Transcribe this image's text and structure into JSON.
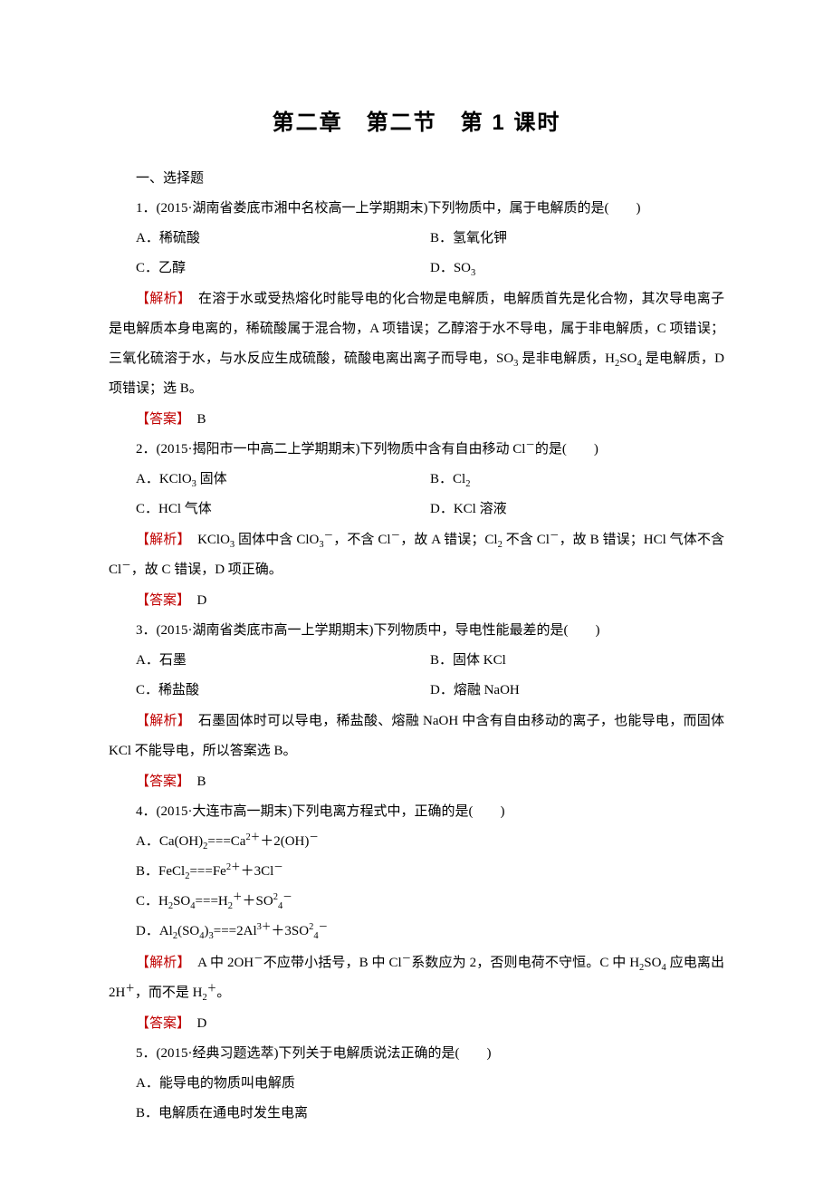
{
  "colors": {
    "text": "#000000",
    "highlight": "#c00000",
    "background": "#ffffff"
  },
  "title": "第二章　第二节　第 1 课时",
  "section_heading": "一、选择题",
  "q1": {
    "stem": "1．(2015·湖南省娄底市湘中名校高一上学期期末)下列物质中，属于电解质的是(　　)",
    "opt_a": "A．稀硫酸",
    "opt_b": "B．氢氧化钾",
    "opt_c": "C．乙醇",
    "exp_label": "【解析】",
    "exp_text_before_d": "　在溶于水或受热熔化时能导电的化合物是电解质，电解质首先是化合物，其次导电离子是电解质本身电离的，稀硫酸属于混合物，A 项错误；乙醇溶于水不导电，属于非电解质，C 项错误；三氧化硫溶于水，与水反应生成硫酸，硫酸电离出离子而导电，SO",
    "exp_text_after_d": " 是非电解质，H",
    "exp_text_tail": " 是电解质，D 项错误；选 B。",
    "ans_label": "【答案】",
    "ans_val": "　B"
  },
  "q2": {
    "stem_before": "2．(2015·揭阳市一中高二上学期期末)下列物质中含有自由移动 Cl",
    "stem_after": "的是(　　)",
    "opt_b": "B．Cl",
    "opt_c": "C．HCl 气体",
    "opt_d": "D．KCl 溶液",
    "exp_label": "【解析】",
    "ans_label": "【答案】",
    "ans_val": "　D"
  },
  "q3": {
    "stem": "3．(2015·湖南省类底市高一上学期期末)下列物质中，导电性能最差的是(　　)",
    "opt_a": "A．石墨",
    "opt_b": "B．固体 KCl",
    "opt_c": "C．稀盐酸",
    "opt_d": "D．熔融 NaOH",
    "exp_label": "【解析】",
    "exp_text": "　石墨固体时可以导电，稀盐酸、熔融 NaOH 中含有自由移动的离子，也能导电，而固体 KCl 不能导电，所以答案选 B。",
    "ans_label": "【答案】",
    "ans_val": "　B"
  },
  "q4": {
    "stem": "4．(2015·大连市高一期末)下列电离方程式中，正确的是(　　)",
    "exp_label": "【解析】",
    "ans_label": "【答案】",
    "ans_val": "　D"
  },
  "q5": {
    "stem": "5．(2015·经典习题选萃)下列关于电解质说法正确的是(　　)",
    "opt_a": "A．能导电的物质叫电解质",
    "opt_b": "B．电解质在通电时发生电离"
  }
}
